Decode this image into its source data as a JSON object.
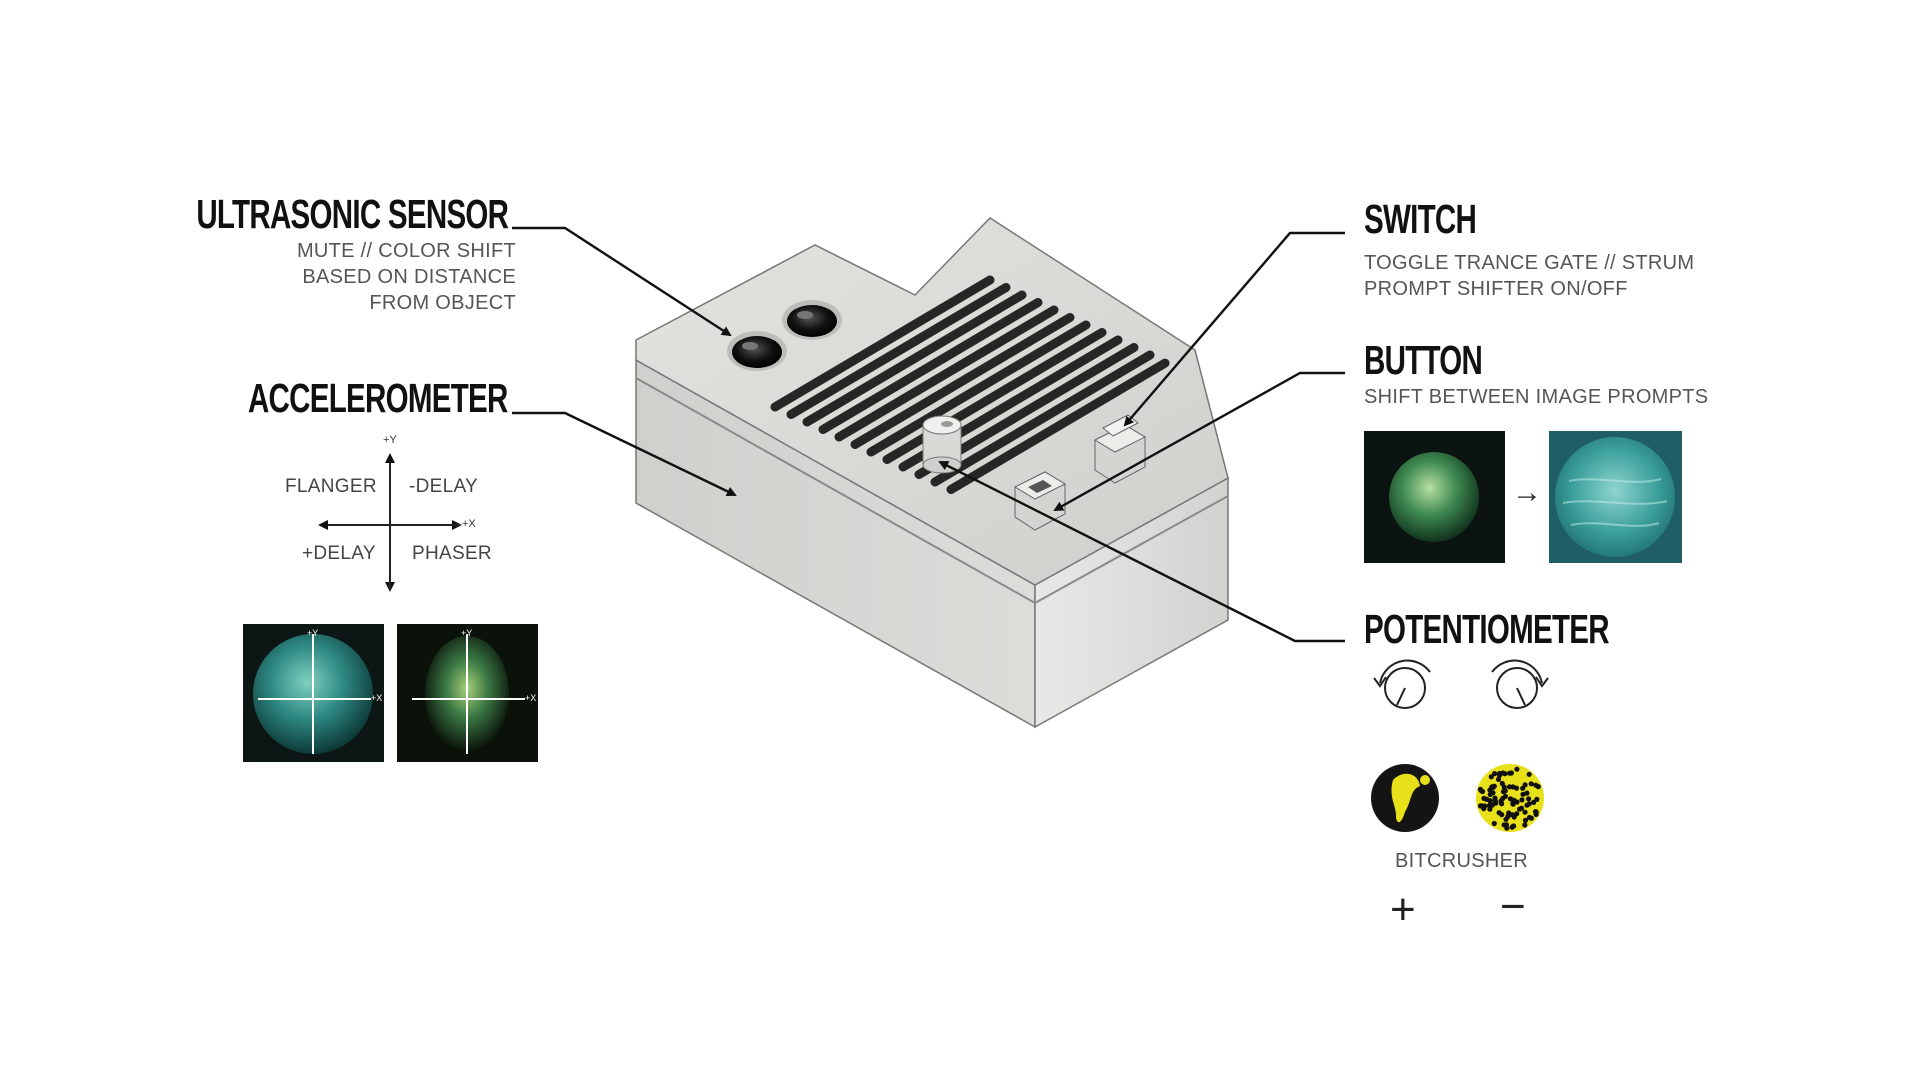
{
  "ultrasonic": {
    "title": "ULTRASONIC SENSOR",
    "desc": [
      "MUTE // COLOR SHIFT",
      "BASED ON DISTANCE",
      "FROM OBJECT"
    ]
  },
  "accelerometer": {
    "title": "ACCELEROMETER",
    "axis_y": "+Y",
    "axis_x": "+X",
    "quadrants": {
      "top_left": "FLANGER",
      "top_right": "-DELAY",
      "bottom_left": "+DELAY",
      "bottom_right": "PHASER"
    },
    "image_axis_y": "+Y",
    "image_axis_x": "+X"
  },
  "switch": {
    "title": "SWITCH",
    "desc": [
      "TOGGLE TRANCE GATE // STRUM",
      "PROMPT SHIFTER ON/OFF"
    ]
  },
  "button": {
    "title": "BUTTON",
    "desc": "SHIFT BETWEEN IMAGE PROMPTS",
    "arrow": "→"
  },
  "potentiometer": {
    "title": "POTENTIOMETER",
    "effect_label": "BITCRUSHER",
    "plus": "+",
    "minus": "−"
  },
  "colors": {
    "device_body": "#d9d9d6",
    "device_top": "#e6e6e3",
    "vents": "#2a2a2a",
    "leader_lines": "#111111",
    "teal_image": "#2f8a84",
    "green_image": "#3c7a45",
    "bitcrusher_yellow": "#e8e01a"
  }
}
